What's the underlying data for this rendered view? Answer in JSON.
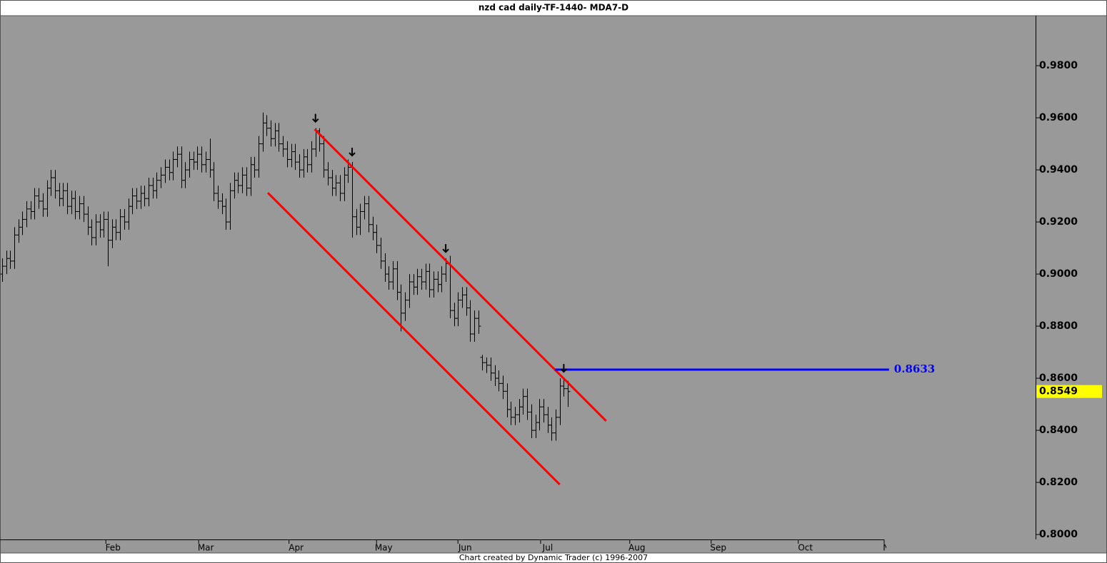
{
  "chart_data": {
    "type": "ohlc",
    "title": "nzd cad daily-TF-1440- MDA7-D",
    "footer": "Chart created by Dynamic Trader  (c) 1996-2007",
    "bar_color": "#000000",
    "xlim": [
      -0.5,
      253.9
    ],
    "ylim": [
      0.7981,
      0.9992
    ],
    "yticks": [
      {
        "value": 0.8,
        "label": "0.8000"
      },
      {
        "value": 0.82,
        "label": "0.8200"
      },
      {
        "value": 0.84,
        "label": "0.8400"
      },
      {
        "value": 0.86,
        "label": "0.8600"
      },
      {
        "value": 0.88,
        "label": "0.8800"
      },
      {
        "value": 0.9,
        "label": "0.9000"
      },
      {
        "value": 0.92,
        "label": "0.9200"
      },
      {
        "value": 0.94,
        "label": "0.9400"
      },
      {
        "value": 0.96,
        "label": "0.9600"
      },
      {
        "value": 0.98,
        "label": "0.9800"
      }
    ],
    "xticks": [
      {
        "value": 25.5,
        "label": "Feb"
      },
      {
        "value": 48.3,
        "label": "Mar"
      },
      {
        "value": 70.5,
        "label": "Apr"
      },
      {
        "value": 92,
        "label": "May"
      },
      {
        "value": 112,
        "label": "Jun"
      },
      {
        "value": 132.3,
        "label": "Jul"
      },
      {
        "value": 154.2,
        "label": "Aug"
      },
      {
        "value": 174.2,
        "label": "Sep"
      },
      {
        "value": 195.6,
        "label": "Oct"
      },
      {
        "value": 216.7,
        "label": "Nov"
      }
    ],
    "ohlc": [
      [
        0.9,
        0.906,
        0.897,
        0.903
      ],
      [
        0.903,
        0.909,
        0.9,
        0.906
      ],
      [
        0.906,
        0.909,
        0.902,
        0.905
      ],
      [
        0.905,
        0.918,
        0.902,
        0.915
      ],
      [
        0.915,
        0.921,
        0.912,
        0.918
      ],
      [
        0.918,
        0.924,
        0.915,
        0.921
      ],
      [
        0.921,
        0.928,
        0.918,
        0.925
      ],
      [
        0.925,
        0.928,
        0.921,
        0.924
      ],
      [
        0.924,
        0.933,
        0.921,
        0.93
      ],
      [
        0.93,
        0.933,
        0.925,
        0.928
      ],
      [
        0.928,
        0.931,
        0.922,
        0.925
      ],
      [
        0.925,
        0.936,
        0.922,
        0.933
      ],
      [
        0.933,
        0.94,
        0.93,
        0.937
      ],
      [
        0.937,
        0.94,
        0.929,
        0.932
      ],
      [
        0.932,
        0.935,
        0.926,
        0.929
      ],
      [
        0.929,
        0.935,
        0.926,
        0.932
      ],
      [
        0.932,
        0.935,
        0.923,
        0.926
      ],
      [
        0.926,
        0.932,
        0.923,
        0.929
      ],
      [
        0.929,
        0.932,
        0.921,
        0.924
      ],
      [
        0.924,
        0.93,
        0.921,
        0.927
      ],
      [
        0.927,
        0.93,
        0.92,
        0.923
      ],
      [
        0.923,
        0.926,
        0.915,
        0.918
      ],
      [
        0.918,
        0.921,
        0.911,
        0.914
      ],
      [
        0.914,
        0.923,
        0.911,
        0.92
      ],
      [
        0.92,
        0.923,
        0.914,
        0.917
      ],
      [
        0.917,
        0.924,
        0.914,
        0.921
      ],
      [
        0.921,
        0.924,
        0.903,
        0.913
      ],
      [
        0.913,
        0.921,
        0.91,
        0.918
      ],
      [
        0.918,
        0.921,
        0.913,
        0.916
      ],
      [
        0.916,
        0.925,
        0.913,
        0.922
      ],
      [
        0.922,
        0.925,
        0.917,
        0.92
      ],
      [
        0.92,
        0.929,
        0.917,
        0.926
      ],
      [
        0.926,
        0.933,
        0.923,
        0.93
      ],
      [
        0.93,
        0.933,
        0.925,
        0.928
      ],
      [
        0.928,
        0.934,
        0.925,
        0.931
      ],
      [
        0.931,
        0.934,
        0.926,
        0.929
      ],
      [
        0.929,
        0.937,
        0.926,
        0.934
      ],
      [
        0.934,
        0.937,
        0.929,
        0.932
      ],
      [
        0.932,
        0.939,
        0.929,
        0.936
      ],
      [
        0.936,
        0.941,
        0.933,
        0.938
      ],
      [
        0.938,
        0.944,
        0.935,
        0.941
      ],
      [
        0.941,
        0.944,
        0.936,
        0.939
      ],
      [
        0.939,
        0.947,
        0.936,
        0.944
      ],
      [
        0.944,
        0.949,
        0.941,
        0.946
      ],
      [
        0.946,
        0.949,
        0.933,
        0.936
      ],
      [
        0.936,
        0.943,
        0.933,
        0.94
      ],
      [
        0.94,
        0.947,
        0.937,
        0.944
      ],
      [
        0.944,
        0.947,
        0.94,
        0.943
      ],
      [
        0.943,
        0.949,
        0.94,
        0.946
      ],
      [
        0.946,
        0.949,
        0.939,
        0.942
      ],
      [
        0.942,
        0.947,
        0.939,
        0.944
      ],
      [
        0.944,
        0.952,
        0.937,
        0.94
      ],
      [
        0.94,
        0.943,
        0.928,
        0.931
      ],
      [
        0.931,
        0.934,
        0.925,
        0.928
      ],
      [
        0.928,
        0.931,
        0.923,
        0.926
      ],
      [
        0.926,
        0.929,
        0.917,
        0.92
      ],
      [
        0.92,
        0.935,
        0.917,
        0.932
      ],
      [
        0.932,
        0.939,
        0.929,
        0.936
      ],
      [
        0.936,
        0.939,
        0.931,
        0.934
      ],
      [
        0.934,
        0.941,
        0.931,
        0.938
      ],
      [
        0.938,
        0.941,
        0.93,
        0.933
      ],
      [
        0.933,
        0.945,
        0.93,
        0.942
      ],
      [
        0.942,
        0.945,
        0.937,
        0.94
      ],
      [
        0.94,
        0.953,
        0.937,
        0.95
      ],
      [
        0.95,
        0.962,
        0.947,
        0.958
      ],
      [
        0.958,
        0.961,
        0.953,
        0.956
      ],
      [
        0.956,
        0.959,
        0.949,
        0.952
      ],
      [
        0.952,
        0.958,
        0.949,
        0.955
      ],
      [
        0.955,
        0.958,
        0.947,
        0.95
      ],
      [
        0.95,
        0.953,
        0.945,
        0.948
      ],
      [
        0.948,
        0.951,
        0.941,
        0.944
      ],
      [
        0.944,
        0.95,
        0.941,
        0.947
      ],
      [
        0.947,
        0.95,
        0.94,
        0.943
      ],
      [
        0.943,
        0.946,
        0.937,
        0.94
      ],
      [
        0.94,
        0.948,
        0.937,
        0.945
      ],
      [
        0.945,
        0.948,
        0.939,
        0.942
      ],
      [
        0.942,
        0.951,
        0.939,
        0.948
      ],
      [
        0.948,
        0.956,
        0.945,
        0.955
      ],
      [
        0.955,
        0.956,
        0.947,
        0.95
      ],
      [
        0.95,
        0.953,
        0.937,
        0.94
      ],
      [
        0.94,
        0.943,
        0.934,
        0.937
      ],
      [
        0.937,
        0.94,
        0.93,
        0.933
      ],
      [
        0.933,
        0.938,
        0.93,
        0.935
      ],
      [
        0.935,
        0.938,
        0.928,
        0.931
      ],
      [
        0.931,
        0.941,
        0.928,
        0.938
      ],
      [
        0.938,
        0.944,
        0.935,
        0.941
      ],
      [
        0.941,
        0.943,
        0.914,
        0.922
      ],
      [
        0.922,
        0.925,
        0.915,
        0.918
      ],
      [
        0.918,
        0.927,
        0.915,
        0.924
      ],
      [
        0.924,
        0.93,
        0.921,
        0.927
      ],
      [
        0.927,
        0.93,
        0.916,
        0.919
      ],
      [
        0.919,
        0.922,
        0.913,
        0.916
      ],
      [
        0.916,
        0.919,
        0.908,
        0.911
      ],
      [
        0.911,
        0.914,
        0.902,
        0.905
      ],
      [
        0.905,
        0.908,
        0.897,
        0.9
      ],
      [
        0.9,
        0.903,
        0.894,
        0.897
      ],
      [
        0.897,
        0.905,
        0.894,
        0.902
      ],
      [
        0.902,
        0.905,
        0.89,
        0.893
      ],
      [
        0.893,
        0.896,
        0.878,
        0.885
      ],
      [
        0.885,
        0.893,
        0.882,
        0.89
      ],
      [
        0.89,
        0.9,
        0.887,
        0.897
      ],
      [
        0.897,
        0.9,
        0.892,
        0.895
      ],
      [
        0.895,
        0.902,
        0.892,
        0.899
      ],
      [
        0.899,
        0.902,
        0.894,
        0.897
      ],
      [
        0.897,
        0.904,
        0.894,
        0.901
      ],
      [
        0.901,
        0.904,
        0.891,
        0.894
      ],
      [
        0.894,
        0.901,
        0.891,
        0.898
      ],
      [
        0.898,
        0.901,
        0.893,
        0.896
      ],
      [
        0.896,
        0.903,
        0.893,
        0.9
      ],
      [
        0.9,
        0.906,
        0.897,
        0.904
      ],
      [
        0.904,
        0.907,
        0.883,
        0.886
      ],
      [
        0.886,
        0.889,
        0.88,
        0.883
      ],
      [
        0.883,
        0.893,
        0.88,
        0.89
      ],
      [
        0.89,
        0.895,
        0.887,
        0.892
      ],
      [
        0.892,
        0.895,
        0.884,
        0.887
      ],
      [
        0.887,
        0.89,
        0.874,
        0.877
      ],
      [
        0.877,
        0.886,
        0.874,
        0.883
      ],
      [
        0.883,
        0.886,
        0.877,
        0.88
      ],
      [
        0.868,
        0.869,
        0.863,
        0.866
      ],
      [
        0.866,
        0.868,
        0.862,
        0.865
      ],
      [
        0.865,
        0.868,
        0.859,
        0.862
      ],
      [
        0.862,
        0.865,
        0.857,
        0.86
      ],
      [
        0.86,
        0.863,
        0.855,
        0.858
      ],
      [
        0.858,
        0.861,
        0.852,
        0.855
      ],
      [
        0.855,
        0.858,
        0.845,
        0.848
      ],
      [
        0.848,
        0.851,
        0.842,
        0.845
      ],
      [
        0.845,
        0.849,
        0.842,
        0.846
      ],
      [
        0.846,
        0.852,
        0.843,
        0.849
      ],
      [
        0.849,
        0.856,
        0.846,
        0.853
      ],
      [
        0.853,
        0.856,
        0.844,
        0.847
      ],
      [
        0.847,
        0.85,
        0.837,
        0.84
      ],
      [
        0.84,
        0.846,
        0.837,
        0.843
      ],
      [
        0.843,
        0.852,
        0.84,
        0.849
      ],
      [
        0.849,
        0.852,
        0.843,
        0.846
      ],
      [
        0.846,
        0.849,
        0.839,
        0.842
      ],
      [
        0.842,
        0.845,
        0.836,
        0.839
      ],
      [
        0.839,
        0.848,
        0.836,
        0.845
      ],
      [
        0.845,
        0.86,
        0.842,
        0.857
      ],
      [
        0.857,
        0.86,
        0.853,
        0.856
      ],
      [
        0.856,
        0.859,
        0.849,
        0.8549
      ]
    ],
    "trendlines": [
      {
        "color": "#ff0000",
        "points": [
          [
            76.8,
            0.9556
          ],
          [
            148.4,
            0.8436
          ]
        ]
      },
      {
        "color": "#ff0000",
        "points": [
          [
            65.3,
            0.9312
          ],
          [
            137.0,
            0.8192
          ]
        ]
      }
    ],
    "level": {
      "value": 0.8633,
      "x": [
        135.8,
        217.9
      ],
      "color": "#0000ff"
    },
    "arrows": [
      77,
      86,
      109,
      138
    ],
    "last_price_color": "#ffff00"
  }
}
